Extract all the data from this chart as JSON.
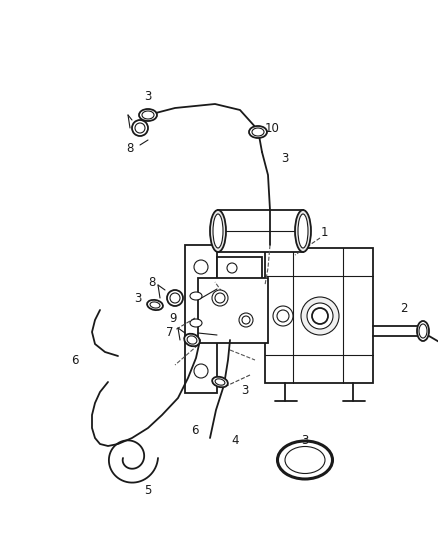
{
  "background_color": "#ffffff",
  "line_color": "#1a1a1a",
  "figure_width": 4.38,
  "figure_height": 5.33,
  "dpi": 100
}
